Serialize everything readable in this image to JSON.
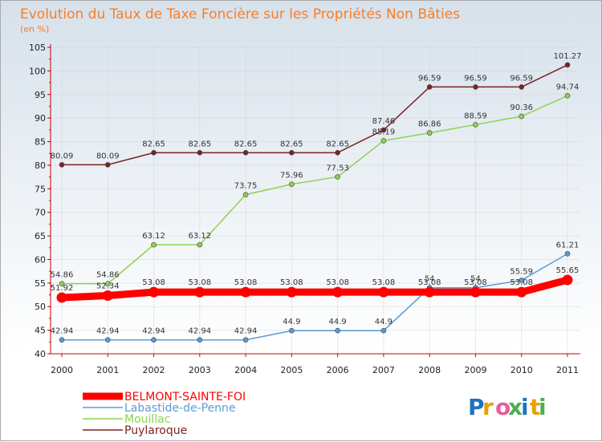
{
  "chart_data": {
    "type": "line",
    "title": "Evolution du Taux de Taxe Foncière sur les Propriétés Non Bâties",
    "subtitle": "(en %)",
    "xlabel": "",
    "ylabel": "",
    "ylim": [
      40,
      105
    ],
    "yticks": [
      40,
      45,
      50,
      55,
      60,
      65,
      70,
      75,
      80,
      85,
      90,
      95,
      100,
      105
    ],
    "categories": [
      "2000",
      "2001",
      "2002",
      "2003",
      "2004",
      "2005",
      "2006",
      "2007",
      "2008",
      "2009",
      "2010",
      "2011"
    ],
    "grid": true,
    "legend_position": "bottom-left",
    "series": [
      {
        "name": "BELMONT-SAINTE-FOI",
        "color": "#ff0000",
        "values": [
          51.92,
          52.34,
          53.08,
          53.08,
          53.08,
          53.08,
          53.08,
          53.08,
          53.08,
          53.08,
          53.08,
          55.65
        ],
        "labels": [
          "51.92",
          "52.34",
          "53.08",
          "53.08",
          "53.08",
          "53.08",
          "53.08",
          "53.08",
          "53.08",
          "53.08",
          "53.08",
          "55.65"
        ]
      },
      {
        "name": "Labastide-de-Penne",
        "color": "#5b9bd5",
        "values": [
          42.94,
          42.94,
          42.94,
          42.94,
          42.94,
          44.9,
          44.9,
          44.9,
          54.0,
          54.0,
          55.59,
          61.21
        ],
        "labels": [
          "42.94",
          "42.94",
          "42.94",
          "42.94",
          "42.94",
          "44.9",
          "44.9",
          "44.9",
          "54",
          "54",
          "55.59",
          "61.21"
        ]
      },
      {
        "name": "Mouillac",
        "color": "#8fd14f",
        "values": [
          54.86,
          54.86,
          63.12,
          63.12,
          73.75,
          75.96,
          77.53,
          85.19,
          86.86,
          88.59,
          90.36,
          94.74
        ],
        "labels": [
          "54.86",
          "54.86",
          "63.12",
          "63.12",
          "73.75",
          "75.96",
          "77.53",
          "85.19",
          "86.86",
          "88.59",
          "90.36",
          "94.74"
        ]
      },
      {
        "name": "Puylaroque",
        "color": "#7a2323",
        "values": [
          80.09,
          80.09,
          82.65,
          82.65,
          82.65,
          82.65,
          82.65,
          87.46,
          96.59,
          96.59,
          96.59,
          101.27
        ],
        "labels": [
          "80.09",
          "80.09",
          "82.65",
          "82.65",
          "82.65",
          "82.65",
          "82.65",
          "87.46",
          "96.59",
          "96.59",
          "96.59",
          "101.27"
        ]
      }
    ]
  },
  "brand": {
    "letters": [
      "P",
      "r",
      "o",
      "x",
      "i",
      "t",
      "i"
    ],
    "colors": [
      "#1e73be",
      "#e8a200",
      "#e85d9c",
      "#4caf50",
      "#1e73be",
      "#e8a200",
      "#4caf50"
    ]
  }
}
